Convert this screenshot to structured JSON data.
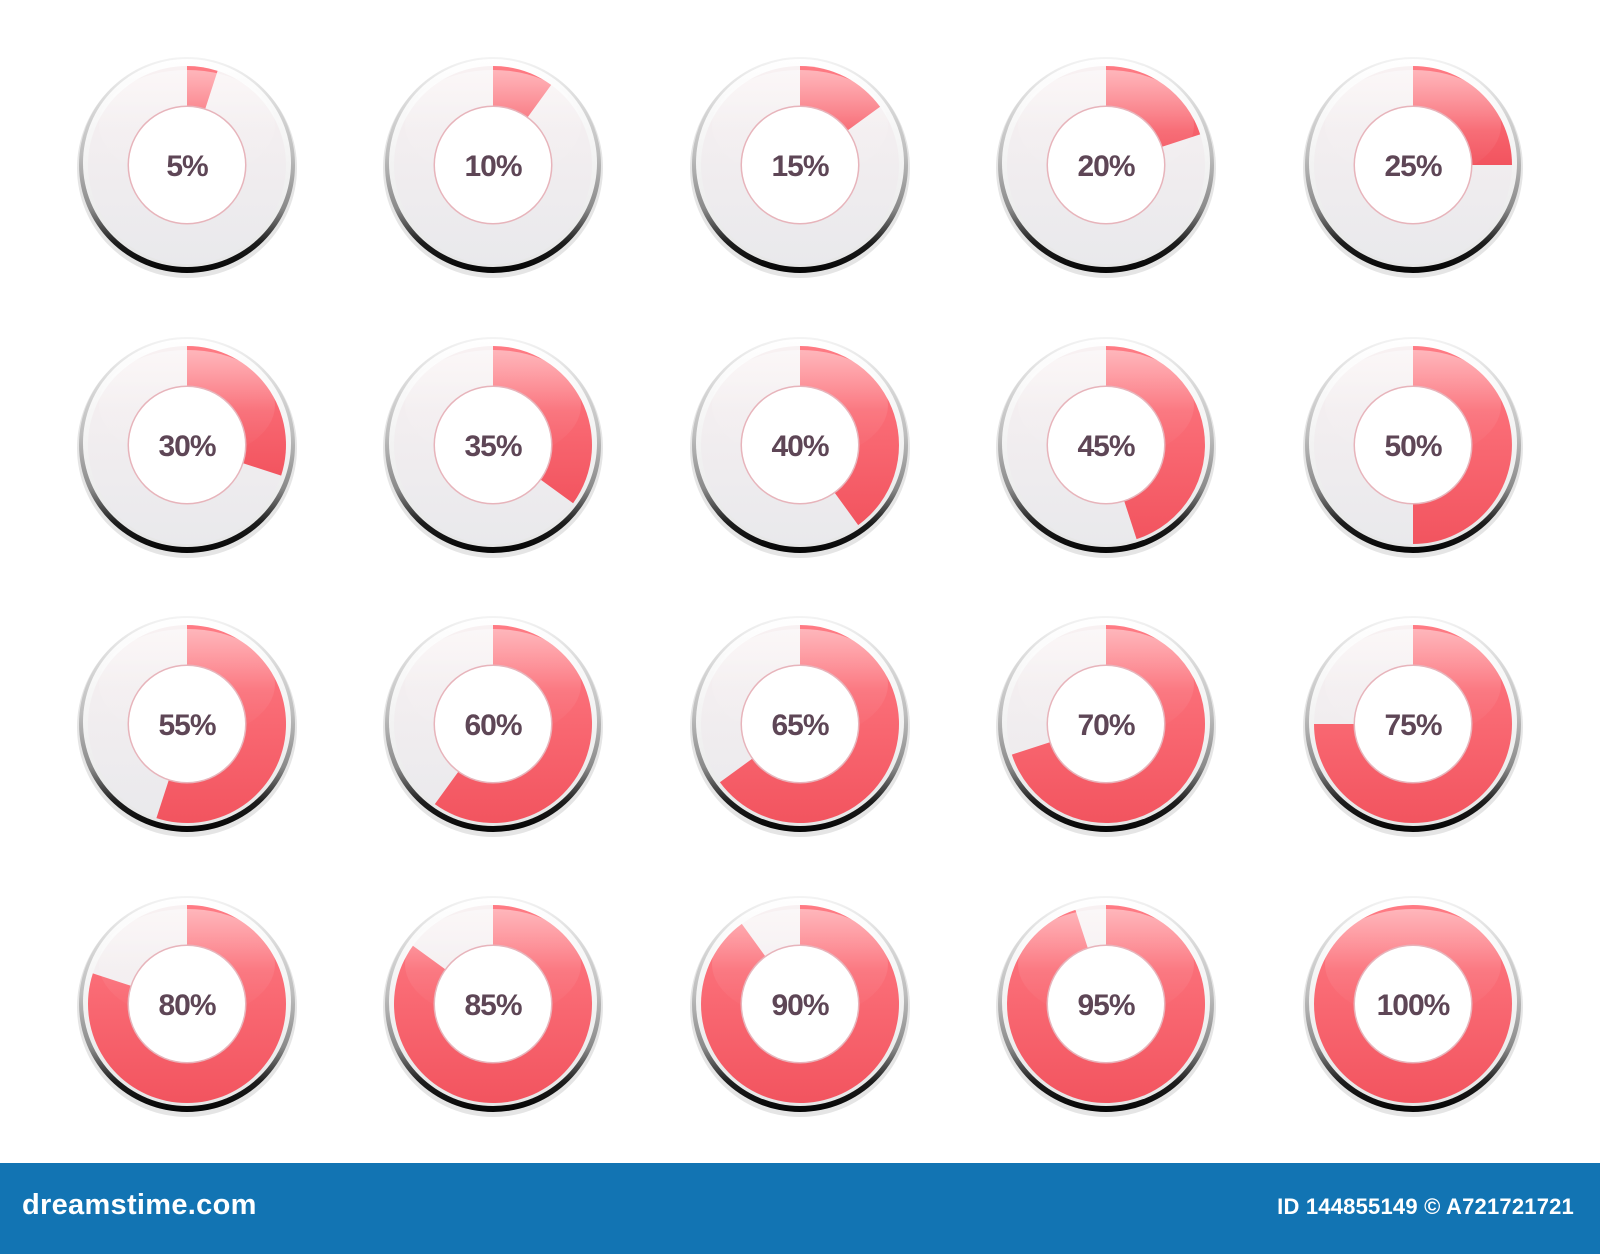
{
  "colors": {
    "fill": "#f2545f",
    "fill_light": "#ff7b84",
    "track": "#e9e9ec",
    "track_light": "#f8f1f2",
    "label": "#5e4656",
    "inner_ring": "#e7b4bb",
    "chrome_dark": "#1d1d1d",
    "chrome_light": "#e6e6e6",
    "footer_bg": "#1274b3"
  },
  "indicators": [
    {
      "value": 5,
      "label": "5%"
    },
    {
      "value": 10,
      "label": "10%"
    },
    {
      "value": 15,
      "label": "15%"
    },
    {
      "value": 20,
      "label": "20%"
    },
    {
      "value": 25,
      "label": "25%"
    },
    {
      "value": 30,
      "label": "30%"
    },
    {
      "value": 35,
      "label": "35%"
    },
    {
      "value": 40,
      "label": "40%"
    },
    {
      "value": 45,
      "label": "45%"
    },
    {
      "value": 50,
      "label": "50%"
    },
    {
      "value": 55,
      "label": "55%"
    },
    {
      "value": 60,
      "label": "60%"
    },
    {
      "value": 65,
      "label": "65%"
    },
    {
      "value": 70,
      "label": "70%"
    },
    {
      "value": 75,
      "label": "75%"
    },
    {
      "value": 80,
      "label": "80%"
    },
    {
      "value": 85,
      "label": "85%"
    },
    {
      "value": 90,
      "label": "90%"
    },
    {
      "value": 95,
      "label": "95%"
    },
    {
      "value": 100,
      "label": "100%"
    }
  ],
  "footer": {
    "logo_text": "dreamstime.com",
    "image_id": "ID 144855149 © A721721721"
  }
}
